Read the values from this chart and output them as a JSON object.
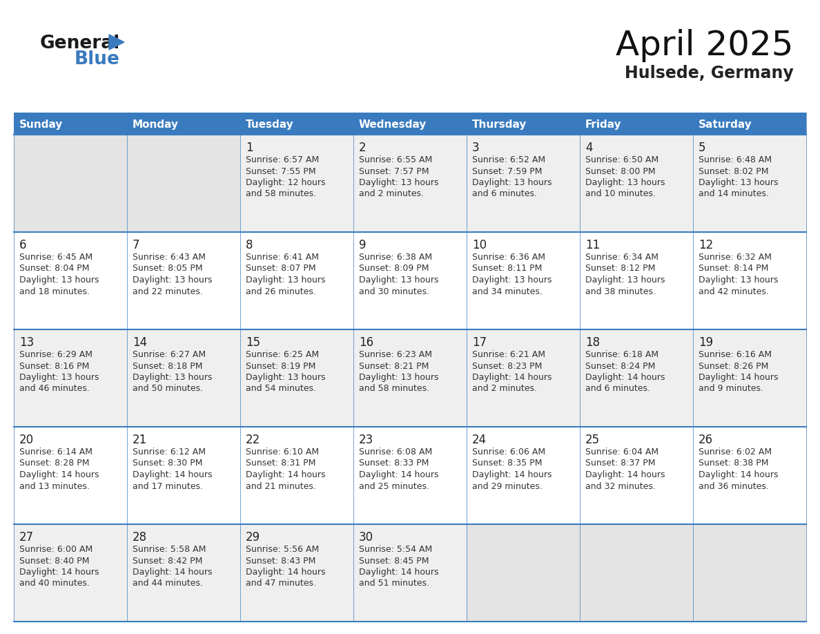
{
  "title": "April 2025",
  "subtitle": "Hulsede, Germany",
  "header_bg": "#3a7bbf",
  "header_text_color": "#ffffff",
  "weekdays": [
    "Sunday",
    "Monday",
    "Tuesday",
    "Wednesday",
    "Thursday",
    "Friday",
    "Saturday"
  ],
  "row_bg_odd": "#efefef",
  "row_bg_even": "#ffffff",
  "cell_border_color": "#3a7bbf",
  "day_number_color": "#222222",
  "day_info_color": "#333333",
  "empty_bg_odd": "#e4e4e4",
  "empty_bg_even": "#f5f5f5",
  "calendar": [
    [
      {
        "day": null
      },
      {
        "day": null
      },
      {
        "day": 1,
        "sunrise": "6:57 AM",
        "sunset": "7:55 PM",
        "daylight_h": "12 hours",
        "daylight_m": "and 58 minutes."
      },
      {
        "day": 2,
        "sunrise": "6:55 AM",
        "sunset": "7:57 PM",
        "daylight_h": "13 hours",
        "daylight_m": "and 2 minutes."
      },
      {
        "day": 3,
        "sunrise": "6:52 AM",
        "sunset": "7:59 PM",
        "daylight_h": "13 hours",
        "daylight_m": "and 6 minutes."
      },
      {
        "day": 4,
        "sunrise": "6:50 AM",
        "sunset": "8:00 PM",
        "daylight_h": "13 hours",
        "daylight_m": "and 10 minutes."
      },
      {
        "day": 5,
        "sunrise": "6:48 AM",
        "sunset": "8:02 PM",
        "daylight_h": "13 hours",
        "daylight_m": "and 14 minutes."
      }
    ],
    [
      {
        "day": 6,
        "sunrise": "6:45 AM",
        "sunset": "8:04 PM",
        "daylight_h": "13 hours",
        "daylight_m": "and 18 minutes."
      },
      {
        "day": 7,
        "sunrise": "6:43 AM",
        "sunset": "8:05 PM",
        "daylight_h": "13 hours",
        "daylight_m": "and 22 minutes."
      },
      {
        "day": 8,
        "sunrise": "6:41 AM",
        "sunset": "8:07 PM",
        "daylight_h": "13 hours",
        "daylight_m": "and 26 minutes."
      },
      {
        "day": 9,
        "sunrise": "6:38 AM",
        "sunset": "8:09 PM",
        "daylight_h": "13 hours",
        "daylight_m": "and 30 minutes."
      },
      {
        "day": 10,
        "sunrise": "6:36 AM",
        "sunset": "8:11 PM",
        "daylight_h": "13 hours",
        "daylight_m": "and 34 minutes."
      },
      {
        "day": 11,
        "sunrise": "6:34 AM",
        "sunset": "8:12 PM",
        "daylight_h": "13 hours",
        "daylight_m": "and 38 minutes."
      },
      {
        "day": 12,
        "sunrise": "6:32 AM",
        "sunset": "8:14 PM",
        "daylight_h": "13 hours",
        "daylight_m": "and 42 minutes."
      }
    ],
    [
      {
        "day": 13,
        "sunrise": "6:29 AM",
        "sunset": "8:16 PM",
        "daylight_h": "13 hours",
        "daylight_m": "and 46 minutes."
      },
      {
        "day": 14,
        "sunrise": "6:27 AM",
        "sunset": "8:18 PM",
        "daylight_h": "13 hours",
        "daylight_m": "and 50 minutes."
      },
      {
        "day": 15,
        "sunrise": "6:25 AM",
        "sunset": "8:19 PM",
        "daylight_h": "13 hours",
        "daylight_m": "and 54 minutes."
      },
      {
        "day": 16,
        "sunrise": "6:23 AM",
        "sunset": "8:21 PM",
        "daylight_h": "13 hours",
        "daylight_m": "and 58 minutes."
      },
      {
        "day": 17,
        "sunrise": "6:21 AM",
        "sunset": "8:23 PM",
        "daylight_h": "14 hours",
        "daylight_m": "and 2 minutes."
      },
      {
        "day": 18,
        "sunrise": "6:18 AM",
        "sunset": "8:24 PM",
        "daylight_h": "14 hours",
        "daylight_m": "and 6 minutes."
      },
      {
        "day": 19,
        "sunrise": "6:16 AM",
        "sunset": "8:26 PM",
        "daylight_h": "14 hours",
        "daylight_m": "and 9 minutes."
      }
    ],
    [
      {
        "day": 20,
        "sunrise": "6:14 AM",
        "sunset": "8:28 PM",
        "daylight_h": "14 hours",
        "daylight_m": "and 13 minutes."
      },
      {
        "day": 21,
        "sunrise": "6:12 AM",
        "sunset": "8:30 PM",
        "daylight_h": "14 hours",
        "daylight_m": "and 17 minutes."
      },
      {
        "day": 22,
        "sunrise": "6:10 AM",
        "sunset": "8:31 PM",
        "daylight_h": "14 hours",
        "daylight_m": "and 21 minutes."
      },
      {
        "day": 23,
        "sunrise": "6:08 AM",
        "sunset": "8:33 PM",
        "daylight_h": "14 hours",
        "daylight_m": "and 25 minutes."
      },
      {
        "day": 24,
        "sunrise": "6:06 AM",
        "sunset": "8:35 PM",
        "daylight_h": "14 hours",
        "daylight_m": "and 29 minutes."
      },
      {
        "day": 25,
        "sunrise": "6:04 AM",
        "sunset": "8:37 PM",
        "daylight_h": "14 hours",
        "daylight_m": "and 32 minutes."
      },
      {
        "day": 26,
        "sunrise": "6:02 AM",
        "sunset": "8:38 PM",
        "daylight_h": "14 hours",
        "daylight_m": "and 36 minutes."
      }
    ],
    [
      {
        "day": 27,
        "sunrise": "6:00 AM",
        "sunset": "8:40 PM",
        "daylight_h": "14 hours",
        "daylight_m": "and 40 minutes."
      },
      {
        "day": 28,
        "sunrise": "5:58 AM",
        "sunset": "8:42 PM",
        "daylight_h": "14 hours",
        "daylight_m": "and 44 minutes."
      },
      {
        "day": 29,
        "sunrise": "5:56 AM",
        "sunset": "8:43 PM",
        "daylight_h": "14 hours",
        "daylight_m": "and 47 minutes."
      },
      {
        "day": 30,
        "sunrise": "5:54 AM",
        "sunset": "8:45 PM",
        "daylight_h": "14 hours",
        "daylight_m": "and 51 minutes."
      },
      {
        "day": null
      },
      {
        "day": null
      },
      {
        "day": null
      }
    ]
  ],
  "logo_general_color": "#1a1a1a",
  "logo_blue_color": "#3a7bbf",
  "fig_bg": "#ffffff",
  "title_fontsize": 36,
  "subtitle_fontsize": 17,
  "header_fontsize": 11,
  "day_num_fontsize": 12,
  "info_fontsize": 9
}
